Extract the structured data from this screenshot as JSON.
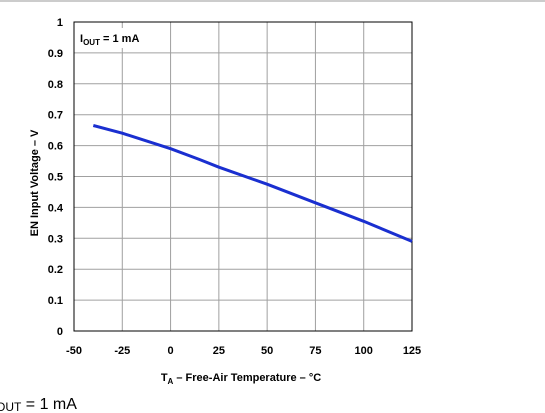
{
  "chart_data": {
    "type": "line",
    "title": "",
    "xlabel_main": "T",
    "xlabel_sub": "A",
    "xlabel_rest": " – Free-Air Temperature – °C",
    "ylabel": "EN Input Voltage – V",
    "xlim": [
      -50,
      125
    ],
    "ylim": [
      0,
      1
    ],
    "xticks": [
      -50,
      -25,
      0,
      25,
      50,
      75,
      100,
      125
    ],
    "yticks": [
      0,
      0.1,
      0.2,
      0.3,
      0.4,
      0.5,
      0.6,
      0.7,
      0.8,
      0.9,
      1
    ],
    "ytick_labels": [
      "0",
      "0.1",
      "0.2",
      "0.3",
      "0.4",
      "0.5",
      "0.6",
      "0.7",
      "0.8",
      "0.9",
      "1"
    ],
    "xtick_labels": [
      "-50",
      "-25",
      "0",
      "25",
      "50",
      "75",
      "100",
      "125"
    ],
    "grid": true,
    "series": [
      {
        "color": "#1a2fd0",
        "x": [
          -40,
          -25,
          0,
          15,
          25,
          50,
          75,
          100,
          125
        ],
        "y": [
          0.665,
          0.64,
          0.59,
          0.555,
          0.53,
          0.475,
          0.415,
          0.355,
          0.29
        ]
      }
    ],
    "annotation": {
      "main": "I",
      "sub": "OUT",
      "rest": " = 1 mA"
    }
  },
  "caption": {
    "sub": "OUT",
    "rest": " = 1 mA"
  }
}
